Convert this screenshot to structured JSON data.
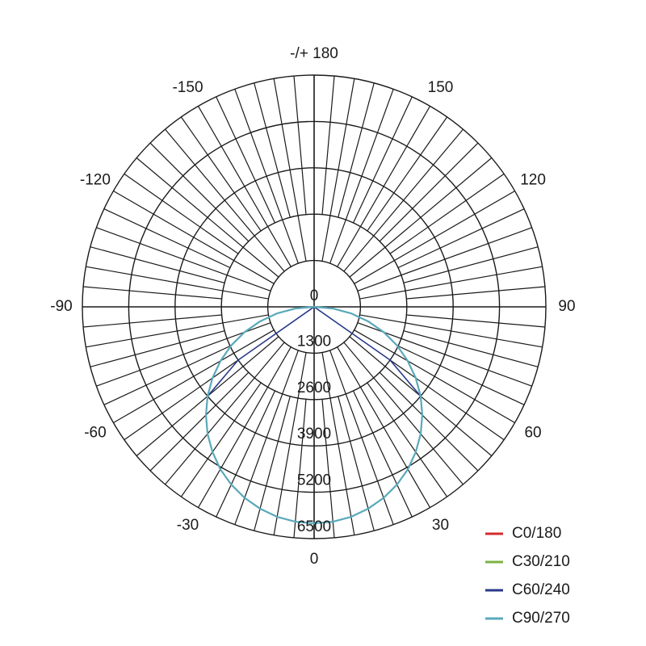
{
  "chart_data": {
    "type": "polar",
    "radial_axis": {
      "range": [
        0,
        6500
      ],
      "ticks": [
        0,
        1300,
        2600,
        3900,
        5200,
        6500
      ],
      "tick_labels": [
        "0",
        "1300",
        "2600",
        "3900",
        "5200",
        "6500"
      ]
    },
    "angular_axis": {
      "zero_direction": "bottom",
      "tick_labels": [
        {
          "angle": 0,
          "label": "0"
        },
        {
          "angle": 30,
          "label": "30"
        },
        {
          "angle": 60,
          "label": "60"
        },
        {
          "angle": 90,
          "label": "90"
        },
        {
          "angle": 120,
          "label": "120"
        },
        {
          "angle": 150,
          "label": "150"
        },
        {
          "angle": 180,
          "label": "-/+ 180"
        },
        {
          "angle": -150,
          "label": "-150"
        },
        {
          "angle": -120,
          "label": "-120"
        },
        {
          "angle": -90,
          "label": "-90"
        },
        {
          "angle": -60,
          "label": "-60"
        },
        {
          "angle": -30,
          "label": "-30"
        }
      ]
    },
    "grid": true,
    "legend_position": "bottom-right",
    "angles": [
      -90,
      -85,
      -80,
      -75,
      -70,
      -65,
      -60,
      -55,
      -50,
      -45,
      -40,
      -35,
      -30,
      -25,
      -20,
      -15,
      -10,
      -5,
      0,
      5,
      10,
      15,
      20,
      25,
      30,
      35,
      40,
      45,
      50,
      55,
      60,
      65,
      70,
      75,
      80,
      85,
      90
    ],
    "series": [
      {
        "name": "C0/180",
        "color": "#d42a2a",
        "values": [
          0,
          530,
          1050,
          1570,
          2080,
          2570,
          3030,
          3480,
          3900,
          4290,
          4650,
          4970,
          5260,
          5500,
          5700,
          5860,
          5980,
          6050,
          6070,
          6050,
          5980,
          5860,
          5700,
          5500,
          5260,
          4970,
          4650,
          4290,
          3900,
          3480,
          3030,
          2570,
          2080,
          1570,
          1050,
          530,
          0
        ]
      },
      {
        "name": "C30/210",
        "color": "#7cb342",
        "values": [
          0,
          530,
          1050,
          1570,
          2080,
          2570,
          3030,
          3480,
          3900,
          4290,
          4650,
          4970,
          5260,
          5500,
          5700,
          5860,
          5980,
          6050,
          6070,
          6050,
          5980,
          5860,
          5700,
          5500,
          5260,
          4970,
          4650,
          4290,
          3900,
          3480,
          3030,
          2570,
          2080,
          1570,
          1050,
          530,
          0
        ]
      },
      {
        "name": "C60/240",
        "color": "#283a8c",
        "values": [
          0,
          0,
          0,
          0,
          0,
          0,
          0,
          2600,
          3900,
          4290,
          4650,
          4970,
          5260,
          5500,
          5700,
          5860,
          5980,
          6050,
          6070,
          6050,
          5980,
          5860,
          5700,
          5500,
          5260,
          4970,
          4650,
          4290,
          3900,
          2600,
          0,
          0,
          0,
          0,
          0,
          0,
          0
        ]
      },
      {
        "name": "C90/270",
        "color": "#5aaabb",
        "values": [
          0,
          530,
          1050,
          1570,
          2080,
          2570,
          3030,
          3480,
          3900,
          4290,
          4650,
          4970,
          5260,
          5500,
          5700,
          5860,
          5980,
          6050,
          6070,
          6050,
          5980,
          5860,
          5700,
          5500,
          5260,
          4970,
          4650,
          4290,
          3900,
          3480,
          3030,
          2570,
          2080,
          1570,
          1050,
          530,
          0
        ]
      }
    ]
  }
}
